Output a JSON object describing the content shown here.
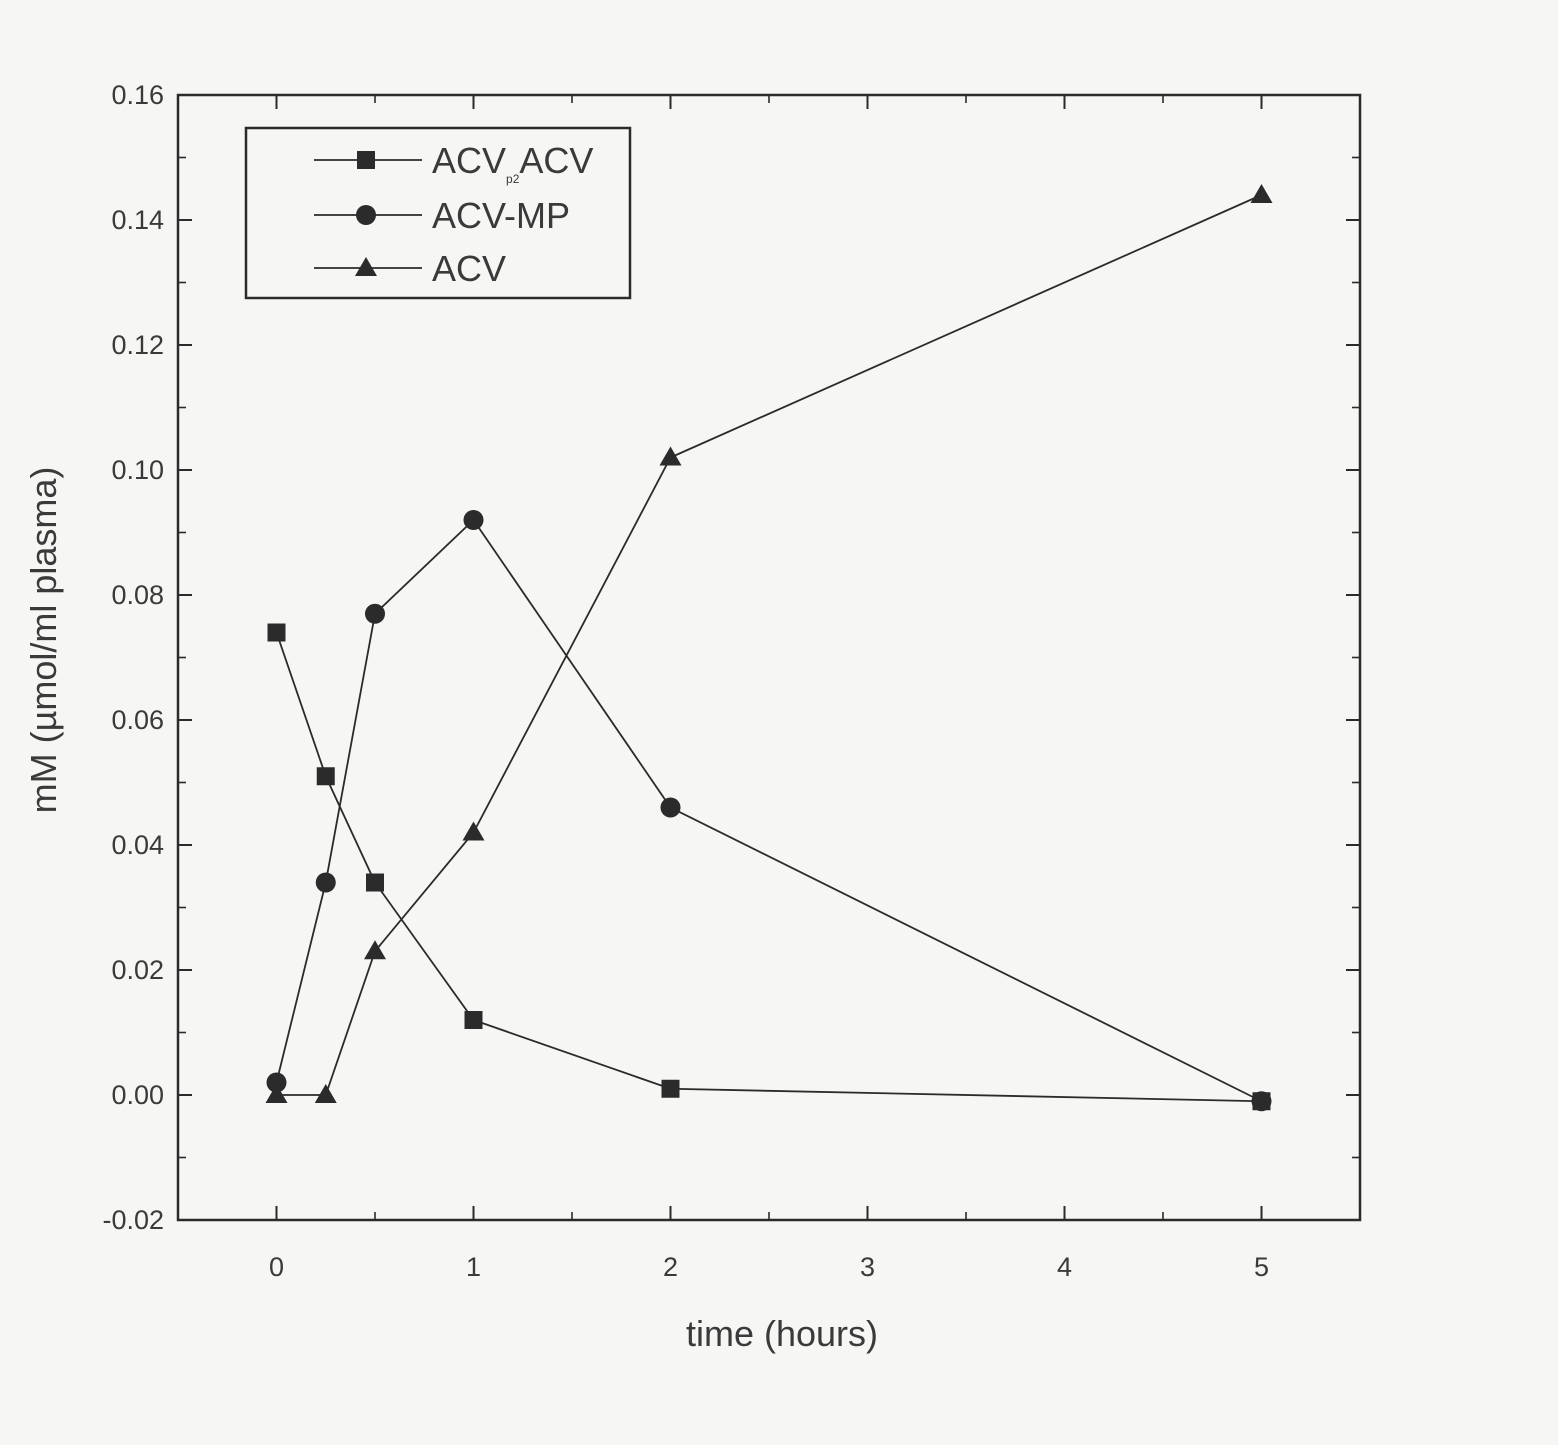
{
  "chart_data": {
    "type": "line",
    "title": "",
    "xlabel": "time (hours)",
    "ylabel": "mM (µmol/ml plasma)",
    "xlim": [
      -0.5,
      5.5
    ],
    "ylim": [
      -0.02,
      0.16
    ],
    "xticks": [
      0,
      1,
      2,
      3,
      4,
      5
    ],
    "xtick_labels": [
      "0",
      "1",
      "2",
      "3",
      "4",
      "5"
    ],
    "yticks": [
      -0.02,
      0.0,
      0.02,
      0.04,
      0.06,
      0.08,
      0.1,
      0.12,
      0.14,
      0.16
    ],
    "ytick_labels": [
      "-0.02",
      "0.00",
      "0.02",
      "0.04",
      "0.06",
      "0.08",
      "0.10",
      "0.12",
      "0.14",
      "0.16"
    ],
    "grid": false,
    "legend_position": "top-left",
    "series": [
      {
        "name": "ACVp2ACV",
        "label_main": "ACV",
        "label_sub": "p2",
        "label_end": "ACV",
        "marker": "square",
        "x": [
          0,
          0.25,
          0.5,
          1,
          2,
          5
        ],
        "y": [
          0.074,
          0.051,
          0.034,
          0.012,
          0.001,
          -0.001
        ]
      },
      {
        "name": "ACV-MP",
        "label_main": "ACV-MP",
        "marker": "circle",
        "x": [
          0,
          0.25,
          0.5,
          1,
          2,
          5
        ],
        "y": [
          0.002,
          0.034,
          0.077,
          0.092,
          0.046,
          -0.001
        ]
      },
      {
        "name": "ACV",
        "label_main": "ACV",
        "marker": "triangle",
        "x": [
          0,
          0.25,
          0.5,
          1,
          2,
          5
        ],
        "y": [
          0.0,
          0.0,
          0.023,
          0.042,
          0.102,
          0.144
        ]
      }
    ],
    "colors": {
      "ink": "#2b2b2b",
      "background": "#f6f6f4"
    }
  }
}
